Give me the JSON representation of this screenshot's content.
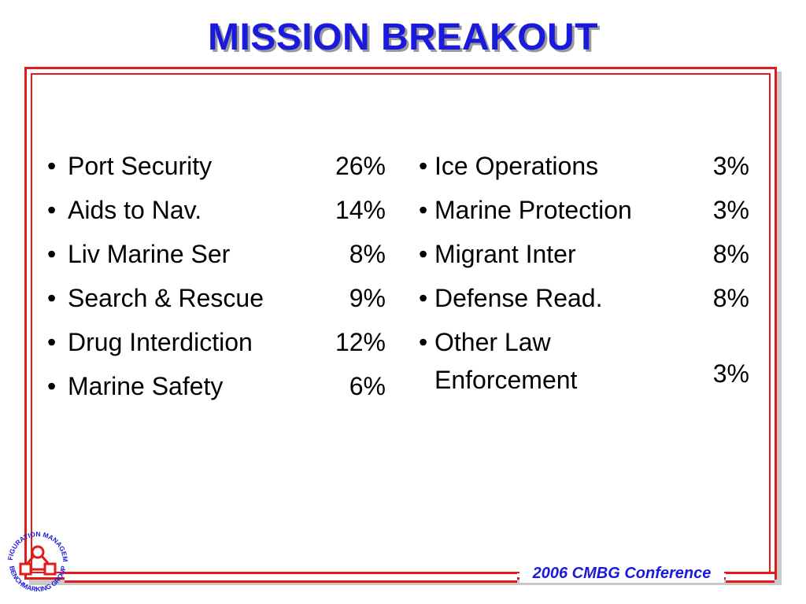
{
  "slide": {
    "title": "MISSION BREAKOUT",
    "footer": "2006 CMBG Conference",
    "bullet": "•"
  },
  "left_items": [
    {
      "label": "Port Security",
      "pct": "26%"
    },
    {
      "label": "Aids to Nav.",
      "pct": "14%"
    },
    {
      "label": "Liv Marine Ser",
      "pct": "8%"
    },
    {
      "label": "Search & Rescue",
      "pct": "9%"
    },
    {
      "label": "Drug Interdiction",
      "pct": "12%"
    },
    {
      "label": "Marine Safety",
      "pct": "6%"
    }
  ],
  "right_items": [
    {
      "label": "Ice Operations",
      "pct": "3%"
    },
    {
      "label": "Marine Protection",
      "pct": "3%"
    },
    {
      "label": "Migrant Inter",
      "pct": "8%"
    },
    {
      "label": "Defense Read.",
      "pct": "8%"
    },
    {
      "label": "Other Law Enforcement",
      "pct": "3%"
    }
  ],
  "logo": {
    "icon": "cmbg-logo-icon",
    "top_text": "CONFIGURATION MANAGEMENT",
    "bottom_text": "BENCHMARKING GROUP",
    "color": "#e21a1a",
    "text_color": "#1a1adc"
  },
  "colors": {
    "title": "#1a1adc",
    "frame": "#e21a1a",
    "footer": "#1a1adc"
  }
}
